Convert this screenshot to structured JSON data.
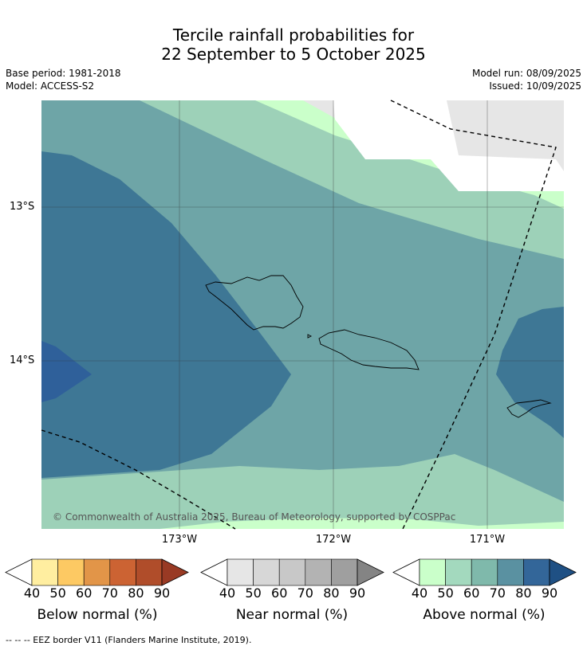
{
  "title_line1": "Tercile rainfall probabilities for",
  "title_line2": "22 September to 5 October 2025",
  "base_period": "Base period: 1981-2018",
  "model": "Model: ACCESS-S2",
  "model_run": "Model run: 08/09/2025",
  "issued": "Issued: 10/09/2025",
  "lat_labels": [
    "13°S",
    "14°S"
  ],
  "lon_labels": [
    "173°W",
    "172°W",
    "171°W"
  ],
  "copyright": "© Commonwealth of Australia 2025, Bureau of Meteorology, supported by COSPPac",
  "footer": "--  --  -- EEZ border V11 (Flanders Marine Institute, 2019).",
  "colorbars": [
    {
      "label": "Below normal (%)",
      "ticks": [
        "40",
        "50",
        "60",
        "70",
        "80",
        "90"
      ],
      "colors": [
        "#ffeea0",
        "#fdc963",
        "#e29548",
        "#cc6333",
        "#b04d2a",
        "#993a24"
      ]
    },
    {
      "label": "Near normal (%)",
      "ticks": [
        "40",
        "50",
        "60",
        "70",
        "80",
        "90"
      ],
      "colors": [
        "#e6e6e6",
        "#d7d7d7",
        "#c8c8c8",
        "#b3b3b3",
        "#9f9f9f",
        "#848484"
      ]
    },
    {
      "label": "Above normal (%)",
      "ticks": [
        "40",
        "50",
        "60",
        "70",
        "80",
        "90"
      ],
      "colors": [
        "#caffca",
        "#a3d9be",
        "#7fb9ab",
        "#5a91a1",
        "#336699",
        "#1f5084"
      ]
    }
  ],
  "map_colors": {
    "above_40": "#caffca",
    "above_50": "#9dd1b8",
    "above_60": "#6ea5a7",
    "above_70": "#3e7795",
    "above_80": "#2f609a",
    "near_40": "#e6e6e6"
  }
}
